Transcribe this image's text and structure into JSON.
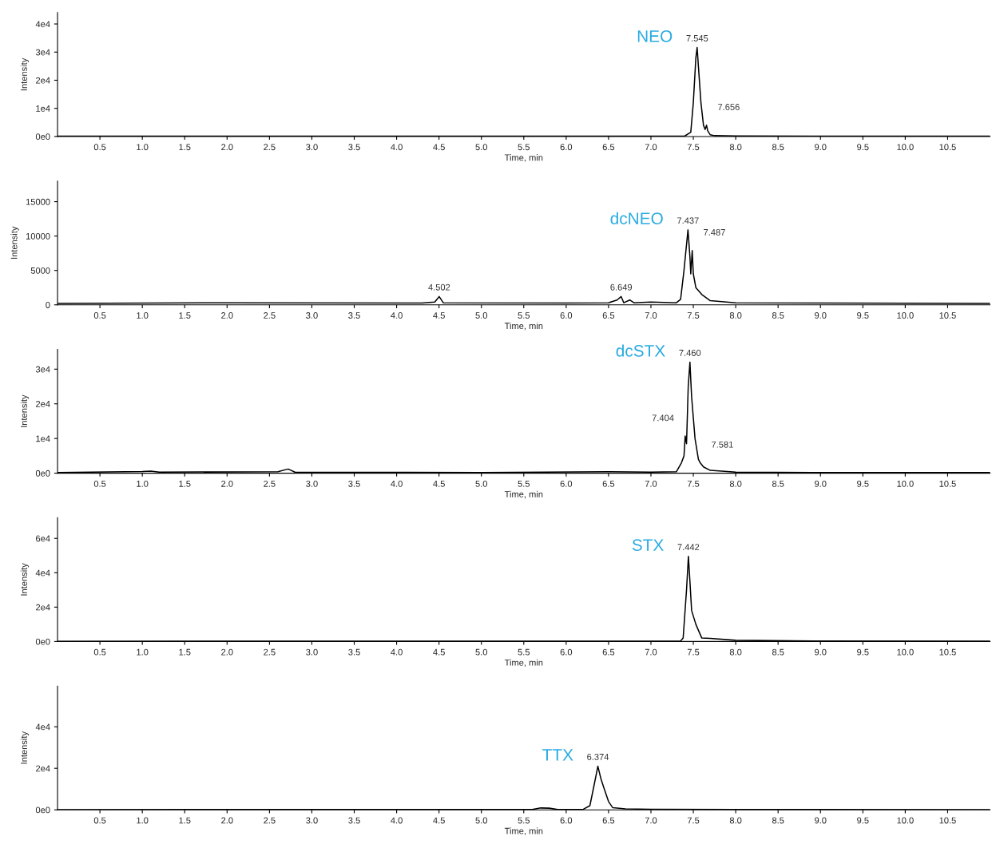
{
  "chart_data": [
    {
      "type": "line",
      "xlabel": "Time, min",
      "ylabel": "Intensity",
      "xlim": [
        0,
        11.0
      ],
      "ylim": [
        0,
        44000
      ],
      "xticks": [
        0.5,
        {
          "value": 1,
          "label": "1.0"
        },
        1.5,
        {
          "value": 2,
          "label": "2.0"
        },
        2.5,
        {
          "value": 3,
          "label": "3.0"
        },
        3.5,
        {
          "value": 4,
          "label": "4.0"
        },
        4.5,
        {
          "value": 5,
          "label": "5.0"
        },
        5.5,
        {
          "value": 6,
          "label": "6.0"
        },
        6.5,
        {
          "value": 7,
          "label": "7.0"
        },
        7.5,
        {
          "value": 8,
          "label": "8.0"
        },
        8.5,
        {
          "value": 9,
          "label": "9.0"
        },
        9.5,
        {
          "value": 10,
          "label": "10.0"
        },
        10.5
      ],
      "yticks": [
        {
          "value": 0,
          "label": "0e0"
        },
        {
          "value": 10000,
          "label": "1e4"
        },
        {
          "value": 20000,
          "label": "2e4"
        },
        {
          "value": 30000,
          "label": "3e4"
        },
        {
          "value": 40000,
          "label": "4e4"
        }
      ],
      "series": [
        {
          "color": "#000000",
          "x": [
            0,
            2,
            4,
            6.4,
            7.0,
            7.4,
            7.47,
            7.5,
            7.53,
            7.545,
            7.56,
            7.59,
            7.62,
            7.64,
            7.656,
            7.67,
            7.7,
            7.75,
            8.0,
            9,
            10,
            11
          ],
          "values": [
            100,
            150,
            100,
            150,
            150,
            200,
            1500,
            12000,
            28000,
            31600,
            25000,
            12000,
            4000,
            2500,
            4000,
            2000,
            600,
            300,
            200,
            150,
            100,
            100
          ]
        }
      ],
      "annotations": [
        "NEO",
        {
          "text": "7.545",
          "x": 7.545,
          "y": 31600
        },
        {
          "text": "7.656",
          "x": 7.656,
          "y": 4000
        }
      ]
    },
    {
      "type": "line",
      "xlabel": "Time, min",
      "ylabel": "Intensity",
      "xlim": [
        0,
        11.0
      ],
      "ylim": [
        0,
        18000
      ],
      "xticks": [
        0.5,
        {
          "value": 1,
          "label": "1.0"
        },
        1.5,
        {
          "value": 2,
          "label": "2.0"
        },
        2.5,
        {
          "value": 3,
          "label": "3.0"
        },
        3.5,
        {
          "value": 4,
          "label": "4.0"
        },
        4.5,
        {
          "value": 5,
          "label": "5.0"
        },
        5.5,
        {
          "value": 6,
          "label": "6.0"
        },
        6.5,
        {
          "value": 7,
          "label": "7.0"
        },
        7.5,
        {
          "value": 8,
          "label": "8.0"
        },
        8.5,
        {
          "value": 9,
          "label": "9.0"
        },
        9.5,
        {
          "value": 10,
          "label": "10.0"
        },
        10.5
      ],
      "yticks": [
        0,
        5000,
        10000,
        15000
      ],
      "series": [
        {
          "color": "#000000",
          "x": [
            0,
            2,
            4.3,
            4.45,
            4.502,
            4.55,
            6.0,
            6.5,
            6.6,
            6.649,
            6.68,
            6.75,
            6.8,
            7.0,
            7.3,
            7.35,
            7.39,
            7.437,
            7.46,
            7.47,
            7.487,
            7.5,
            7.53,
            7.6,
            7.7,
            8,
            9,
            11
          ],
          "values": [
            200,
            300,
            250,
            400,
            1200,
            300,
            250,
            300,
            700,
            1200,
            300,
            700,
            300,
            400,
            300,
            800,
            5000,
            10900,
            7000,
            4500,
            7900,
            4500,
            2500,
            1500,
            600,
            300,
            250,
            200
          ]
        }
      ],
      "annotations": [
        "dcNEO",
        {
          "text": "7.437",
          "x": 7.437,
          "y": 10900
        },
        {
          "text": "7.487",
          "x": 7.487,
          "y": 7900
        },
        {
          "text": "4.502",
          "x": 4.502,
          "y": 1200
        },
        {
          "text": "6.649",
          "x": 6.649,
          "y": 1200
        }
      ]
    },
    {
      "type": "line",
      "xlabel": "Time, min",
      "ylabel": "Intensity",
      "xlim": [
        0,
        11.0
      ],
      "ylim": [
        0,
        35700
      ],
      "xticks": [
        0.5,
        {
          "value": 1,
          "label": "1.0"
        },
        1.5,
        {
          "value": 2,
          "label": "2.0"
        },
        2.5,
        {
          "value": 3,
          "label": "3.0"
        },
        3.5,
        {
          "value": 4,
          "label": "4.0"
        },
        4.5,
        {
          "value": 5,
          "label": "5.0"
        },
        5.5,
        {
          "value": 6,
          "label": "6.0"
        },
        6.5,
        {
          "value": 7,
          "label": "7.0"
        },
        7.5,
        {
          "value": 8,
          "label": "8.0"
        },
        8.5,
        {
          "value": 9,
          "label": "9.0"
        },
        9.5,
        {
          "value": 10,
          "label": "10.0"
        },
        10.5
      ],
      "yticks": [
        {
          "value": 0,
          "label": "0e0"
        },
        {
          "value": 10000,
          "label": "1e4"
        },
        {
          "value": 20000,
          "label": "2e4"
        },
        {
          "value": 30000,
          "label": "3e4"
        }
      ],
      "series": [
        {
          "color": "#000000",
          "x": [
            0,
            1.0,
            1.1,
            1.2,
            2.6,
            2.72,
            2.8,
            5,
            6.5,
            7.0,
            7.3,
            7.36,
            7.39,
            7.404,
            7.42,
            7.44,
            7.46,
            7.48,
            7.52,
            7.56,
            7.581,
            7.62,
            7.7,
            8,
            9,
            11
          ],
          "values": [
            200,
            500,
            600,
            300,
            400,
            1200,
            300,
            200,
            400,
            300,
            400,
            3000,
            5000,
            10700,
            8500,
            25000,
            32000,
            22000,
            10000,
            4000,
            3000,
            1800,
            800,
            300,
            200,
            200
          ]
        }
      ],
      "annotations": [
        "dcSTX",
        {
          "text": "7.460",
          "x": 7.46,
          "y": 32000
        },
        {
          "text": "7.404",
          "x": 7.404,
          "y": 10700
        },
        {
          "text": "7.581",
          "x": 7.581,
          "y": 3000
        }
      ]
    },
    {
      "type": "line",
      "xlabel": "Time, min",
      "ylabel": "Intensity",
      "xlim": [
        0,
        11.0
      ],
      "ylim": [
        0,
        72000
      ],
      "xticks": [
        0.5,
        {
          "value": 1,
          "label": "1.0"
        },
        1.5,
        {
          "value": 2,
          "label": "2.0"
        },
        2.5,
        {
          "value": 3,
          "label": "3.0"
        },
        3.5,
        {
          "value": 4,
          "label": "4.0"
        },
        4.5,
        {
          "value": 5,
          "label": "5.0"
        },
        5.5,
        {
          "value": 6,
          "label": "6.0"
        },
        6.5,
        {
          "value": 7,
          "label": "7.0"
        },
        7.5,
        {
          "value": 8,
          "label": "8.0"
        },
        8.5,
        {
          "value": 9,
          "label": "9.0"
        },
        9.5,
        {
          "value": 10,
          "label": "10.0"
        },
        10.5
      ],
      "yticks": [
        {
          "value": 0,
          "label": "0e0"
        },
        {
          "value": 20000,
          "label": "2e4"
        },
        {
          "value": 40000,
          "label": "4e4"
        },
        {
          "value": 60000,
          "label": "6e4"
        }
      ],
      "series": [
        {
          "color": "#000000",
          "x": [
            0,
            7.0,
            7.35,
            7.38,
            7.42,
            7.442,
            7.46,
            7.48,
            7.53,
            7.6,
            7.7,
            8.0,
            9,
            11
          ],
          "values": [
            100,
            200,
            300,
            2000,
            30000,
            49500,
            35000,
            18000,
            10000,
            2000,
            1800,
            700,
            300,
            200
          ]
        }
      ],
      "annotations": [
        "STX",
        {
          "text": "7.442",
          "x": 7.442,
          "y": 49500
        }
      ]
    },
    {
      "type": "line",
      "xlabel": "Time, min",
      "ylabel": "Intensity",
      "xlim": [
        0,
        11.0
      ],
      "ylim": [
        0,
        59600
      ],
      "xticks": [
        0.5,
        {
          "value": 1,
          "label": "1.0"
        },
        1.5,
        {
          "value": 2,
          "label": "2.0"
        },
        2.5,
        {
          "value": 3,
          "label": "3.0"
        },
        3.5,
        {
          "value": 4,
          "label": "4.0"
        },
        4.5,
        {
          "value": 5,
          "label": "5.0"
        },
        5.5,
        {
          "value": 6,
          "label": "6.0"
        },
        6.5,
        {
          "value": 7,
          "label": "7.0"
        },
        7.5,
        {
          "value": 8,
          "label": "8.0"
        },
        8.5,
        {
          "value": 9,
          "label": "9.0"
        },
        9.5,
        {
          "value": 10,
          "label": "10.0"
        },
        10.5
      ],
      "yticks": [
        {
          "value": 0,
          "label": "0e0"
        },
        {
          "value": 20000,
          "label": "2e4"
        },
        {
          "value": 40000,
          "label": "4e4"
        }
      ],
      "series": [
        {
          "color": "#000000",
          "x": [
            0,
            5.6,
            5.7,
            5.8,
            5.9,
            6.2,
            6.28,
            6.33,
            6.374,
            6.41,
            6.45,
            6.5,
            6.55,
            6.7,
            7.0,
            8,
            11
          ],
          "values": [
            100,
            200,
            900,
            800,
            200,
            200,
            2000,
            12000,
            21000,
            15000,
            10000,
            4000,
            1000,
            500,
            300,
            200,
            100
          ]
        }
      ],
      "annotations": [
        "TTX",
        {
          "text": "6.374",
          "x": 6.374,
          "y": 21000
        }
      ]
    }
  ]
}
